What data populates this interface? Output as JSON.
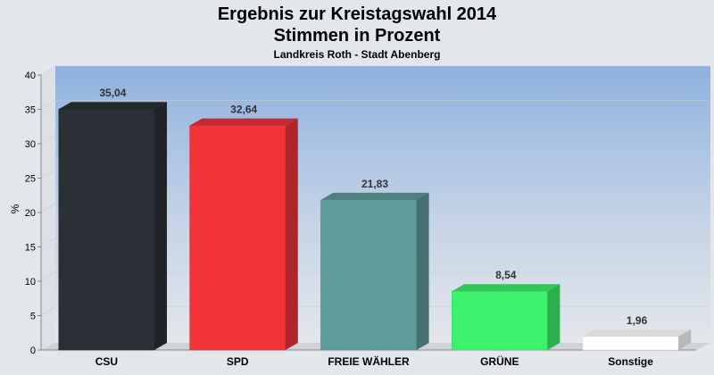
{
  "chart_data": {
    "type": "bar",
    "title": "Ergebnis zur Kreistagswahl 2014",
    "title2": "Stimmen in Prozent",
    "subtitle": "Landkreis Roth - Stadt Abenberg",
    "ylabel": "%",
    "xlabel": "",
    "ylim": [
      0,
      40
    ],
    "yticks": [
      0,
      5,
      10,
      15,
      20,
      25,
      30,
      35,
      40
    ],
    "categories": [
      "CSU",
      "SPD",
      "FREIE WÄHLER",
      "GRÜNE",
      "Sonstige"
    ],
    "values": [
      35.04,
      32.64,
      21.83,
      8.54,
      1.96
    ],
    "value_labels": [
      "35,04",
      "32,64",
      "21,83",
      "8,54",
      "1,96"
    ],
    "colors": [
      "#2b2f36",
      "#f2333a",
      "#5f9c9c",
      "#3ef26e",
      "#ffffff"
    ],
    "grid": true,
    "legend": "none"
  }
}
